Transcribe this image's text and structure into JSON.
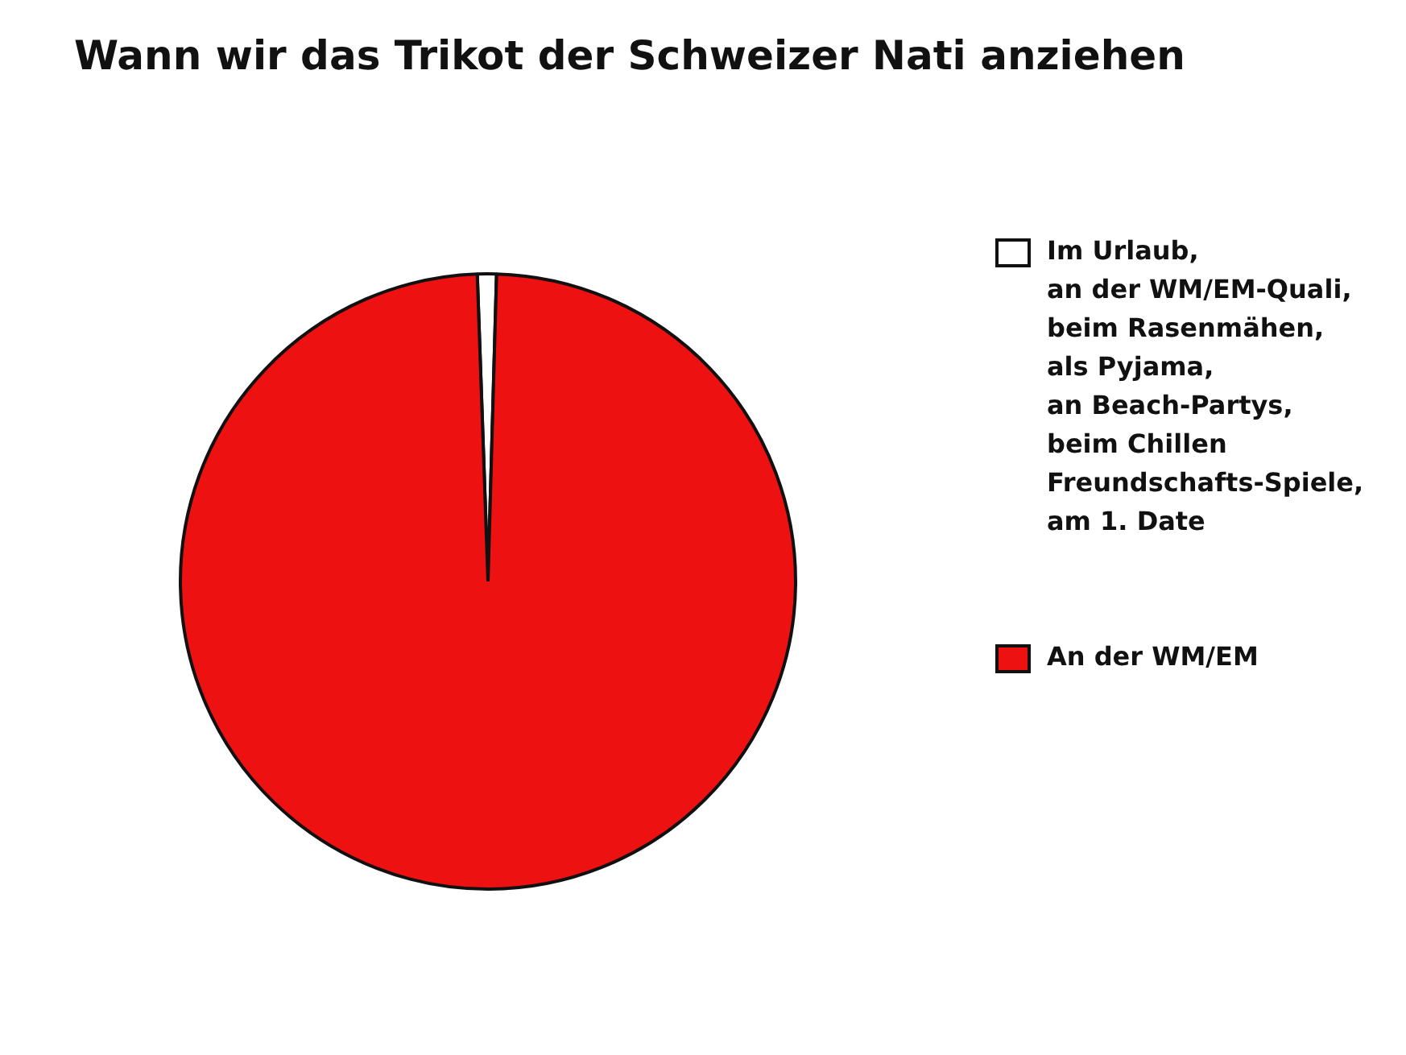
{
  "chart_data": {
    "type": "pie",
    "title": "Wann wir das Trikot der Schweizer Nati anziehen",
    "categories": [
      "Im Urlaub,\nan der WM/EM-Quali,\nbeim Rasenmähen,\nals Pyjama,\nan Beach-Partys,\nbeim Chillen\nFreundschafts-Spiele,\nam 1. Date",
      "An der WM/EM"
    ],
    "values": [
      1,
      99
    ],
    "colors": [
      "#ffffff",
      "#ee1111"
    ],
    "legend": "right"
  }
}
